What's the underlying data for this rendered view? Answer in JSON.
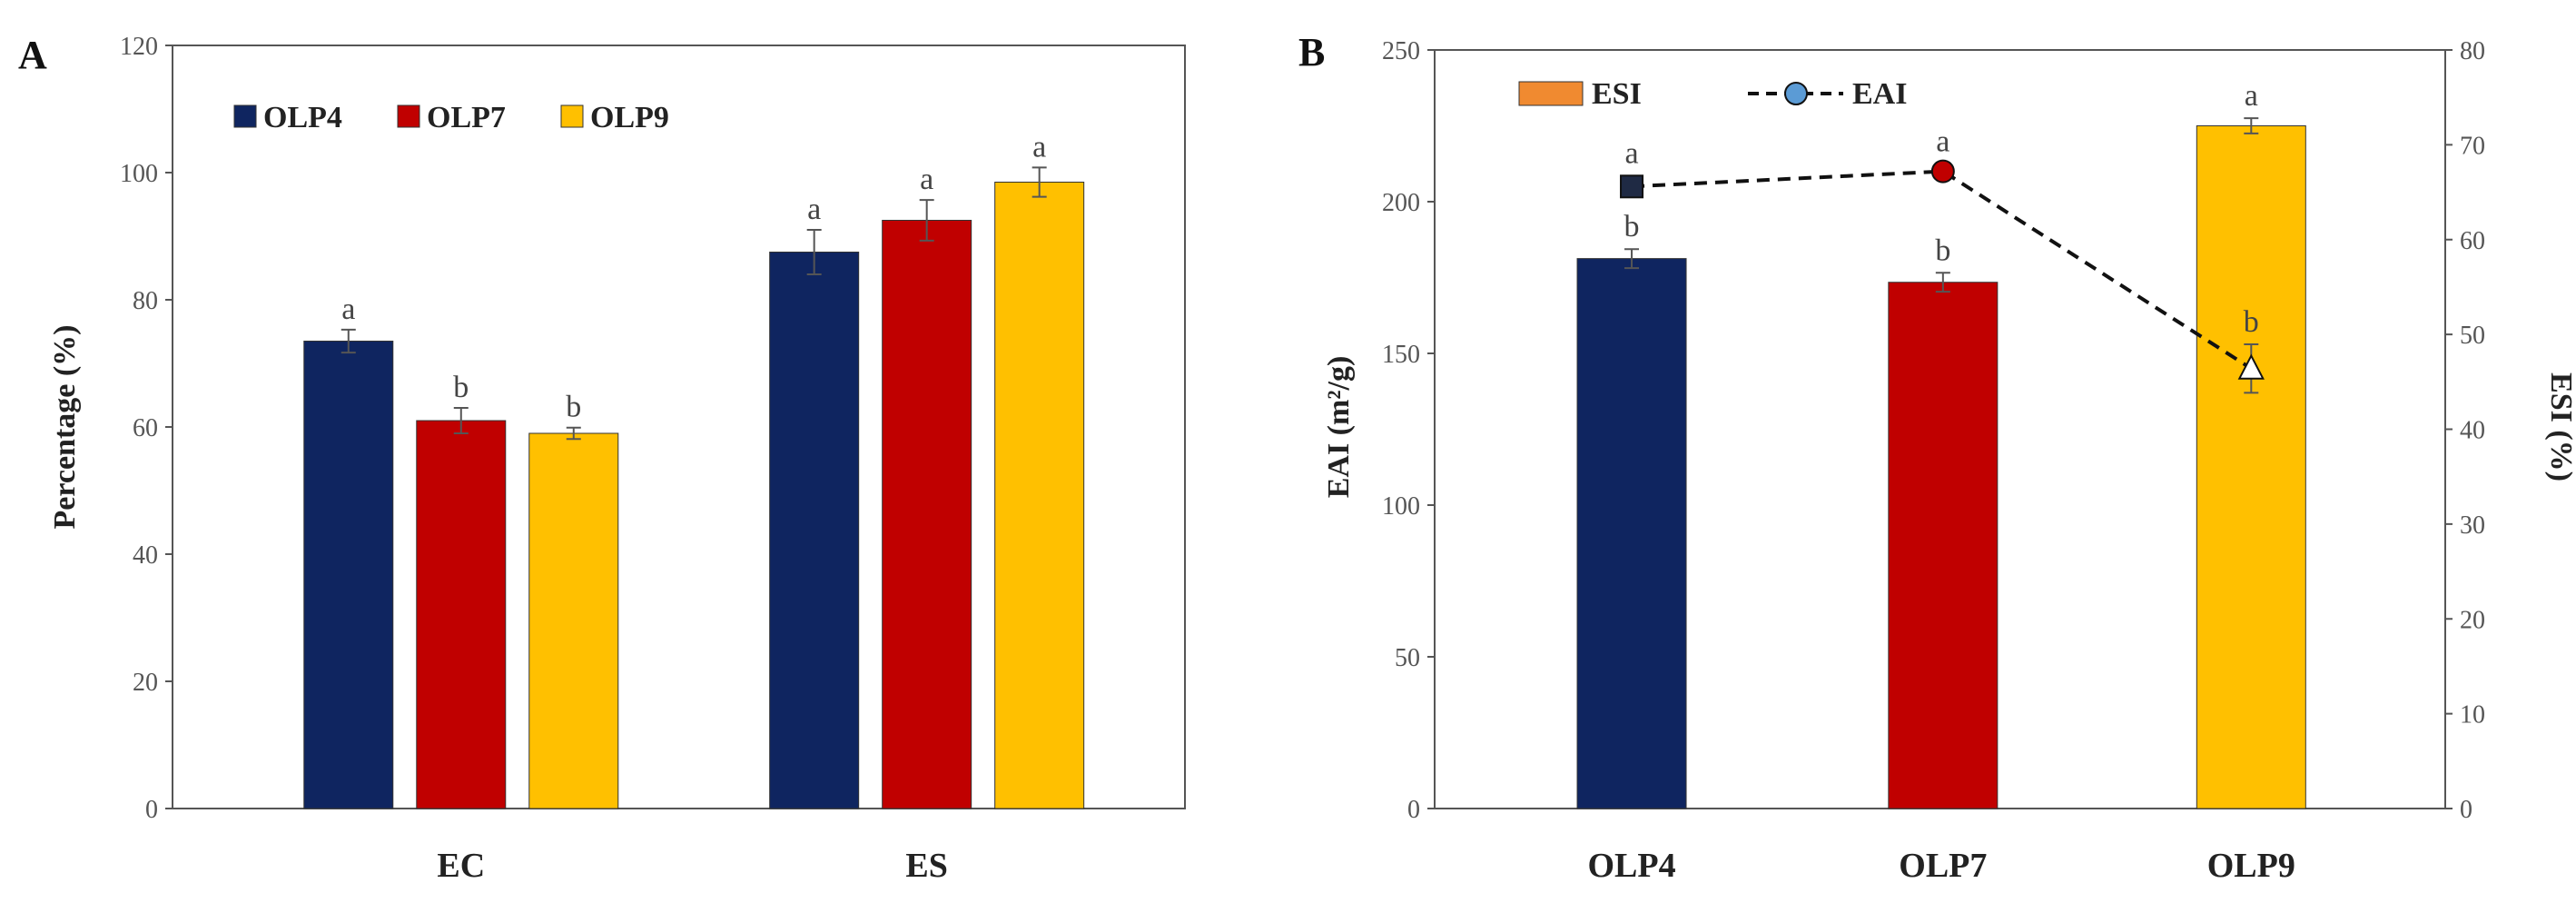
{
  "chart_data": [
    {
      "panel": "A",
      "type": "bar",
      "categories": [
        "EC",
        "ES"
      ],
      "series": [
        {
          "name": "OLP4",
          "color": "#0f2560",
          "values": [
            73.5,
            87.5
          ],
          "errors": [
            1.8,
            3.5
          ],
          "sig": [
            "a",
            "a"
          ]
        },
        {
          "name": "OLP7",
          "color": "#c00000",
          "values": [
            61,
            92.5
          ],
          "errors": [
            2.0,
            3.2
          ],
          "sig": [
            "b",
            "a"
          ]
        },
        {
          "name": "OLP9",
          "color": "#ffc000",
          "values": [
            59,
            98.5
          ],
          "errors": [
            0.9,
            2.3
          ],
          "sig": [
            "b",
            "a"
          ]
        }
      ],
      "ylabel": "Percentage (%)",
      "ylim": [
        0,
        120
      ],
      "yticks": [
        0,
        20,
        40,
        60,
        80,
        100,
        120
      ],
      "legend_position": "top-left"
    },
    {
      "panel": "B",
      "type": "bar+line",
      "categories": [
        "OLP4",
        "OLP7",
        "OLP9"
      ],
      "bars": {
        "name": "ESI",
        "axis": "right",
        "colors": [
          "#0f2560",
          "#c00000",
          "#ffc000"
        ],
        "legend_color": "#f08a30",
        "values": [
          58,
          55.5,
          72
        ],
        "errors": [
          1.0,
          1.0,
          0.8
        ],
        "sig": [
          "b",
          "b",
          "a"
        ]
      },
      "line": {
        "name": "EAI",
        "axis": "left",
        "style": "dashed",
        "legend_marker_color": "#5b9bd5",
        "markers": [
          "square",
          "circle",
          "triangle"
        ],
        "marker_colors": [
          "#1f2a44",
          "#c00000",
          "#ffffff"
        ],
        "values": [
          205,
          210,
          145
        ],
        "errors": [
          0,
          2.5,
          8
        ],
        "sig": [
          "a",
          "a",
          "b"
        ]
      },
      "ylabel_left": "EAI (m²/g)",
      "ylabel_right": "ESI (%)",
      "ylim_left": [
        0,
        250
      ],
      "yticks_left": [
        0,
        50,
        100,
        150,
        200,
        250
      ],
      "ylim_right": [
        0,
        80
      ],
      "yticks_right": [
        0,
        10,
        20,
        30,
        40,
        50,
        60,
        70,
        80
      ],
      "legend_position": "top-left"
    }
  ]
}
